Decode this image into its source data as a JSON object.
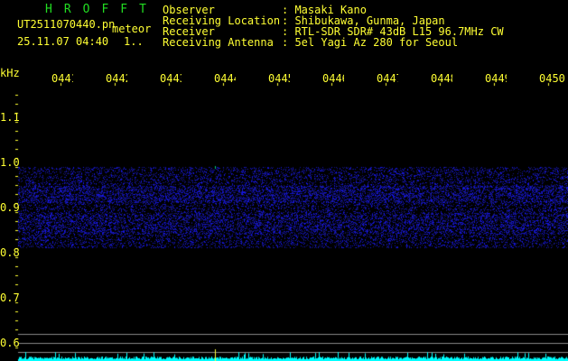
{
  "header": {
    "app": "HROFFT",
    "filename": "UT2511070440.pn",
    "mode": "meteor",
    "datetime": "25.11.07 04:40",
    "counter": "1.."
  },
  "station": [
    {
      "label": "Observer",
      "value": ": Masaki Kano"
    },
    {
      "label": "Receiving Location",
      "value": ": Shibukawa, Gunma, Japan"
    },
    {
      "label": "Receiver",
      "value": ": RTL-SDR SDR# 43dB L15 96.7MHz CW"
    },
    {
      "label": "Receiving Antenna",
      "value": ": 5el Yagi Az 280 for Seoul"
    }
  ],
  "axis": {
    "unit": "kHz",
    "time_labels": [
      "0441",
      "0442",
      "0443",
      "0444",
      "0445",
      "0446",
      "0447",
      "0448",
      "0449",
      "0450"
    ],
    "freq_labels": [
      "1.1",
      "1.0",
      "0.9",
      "0.8",
      "0.7",
      "0.6"
    ]
  },
  "colors": {
    "text": "#ffff33",
    "logo": "#22dd22",
    "signal": "#3333ff",
    "level": "#00ffff",
    "grid": "#888888"
  }
}
